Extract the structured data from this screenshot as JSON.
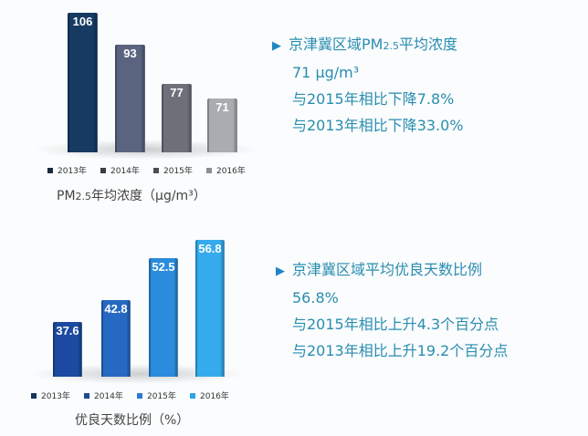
{
  "chart_data": [
    {
      "type": "bar",
      "categories": [
        "2013年",
        "2014年",
        "2015年",
        "2016年"
      ],
      "values": [
        106,
        93,
        77,
        71
      ],
      "title": "PM2.5年均浓度（μg/m³）",
      "ylim": [
        49,
        106
      ],
      "colors": [
        "#173a63",
        "#5a6480",
        "#6d7079",
        "#a9acb1"
      ],
      "legend_colors": [
        "#1b2a3a",
        "#3a3d44",
        "#4a4d52",
        "#8a8d92"
      ]
    },
    {
      "type": "bar",
      "categories": [
        "2013年",
        "2014年",
        "2015年",
        "2016年"
      ],
      "values": [
        37.6,
        42.8,
        52.5,
        56.8
      ],
      "title": "优良天数比例（%）",
      "ylim": [
        24.8,
        56.8
      ],
      "colors": [
        "#1b4aa0",
        "#2669c2",
        "#2b8bdc",
        "#35aaec"
      ],
      "legend_colors": [
        "#16335e",
        "#1d4a94",
        "#2a7ad0",
        "#2ea4ea"
      ]
    }
  ],
  "info1": {
    "heading_pre": "京津冀区域PM",
    "heading_sub": "2.5",
    "heading_post": "平均浓度",
    "lines": [
      "71 μg/m³",
      "与2015年相比下降7.8%",
      "与2013年相比下降33.0%"
    ]
  },
  "info2": {
    "heading": "京津冀区域平均优良天数比例",
    "lines": [
      "56.8%",
      "与2015年相比上升4.3个百分点",
      "与2013年相比上升19.2个百分点"
    ]
  },
  "colors": {
    "text_accent": "#2a8db0",
    "bullet": "#1f86c4"
  },
  "titles": {
    "c1_pre": "PM",
    "c1_sub": "2.5",
    "c1_post": "年均浓度（μg/m³）",
    "c2": "优良天数比例（%）"
  }
}
